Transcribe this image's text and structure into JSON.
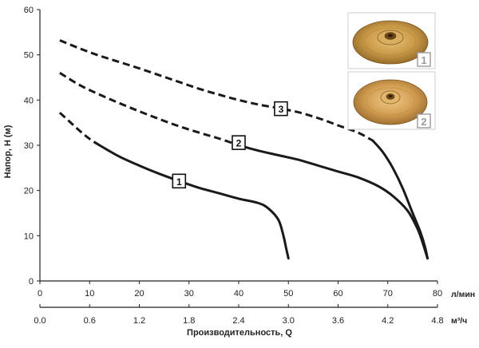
{
  "chart_data": {
    "type": "line",
    "ylabel": "Напор, Н (м)",
    "xlabel": "Производительность, Q",
    "x_unit_primary": "л/мин",
    "x_unit_secondary": "м³/ч",
    "xlim": [
      0,
      80
    ],
    "ylim": [
      0,
      60
    ],
    "x_ticks": [
      0,
      10,
      20,
      30,
      40,
      50,
      60,
      70,
      80
    ],
    "x_tick_labels": [
      "0",
      "10",
      "20",
      "30",
      "40",
      "50",
      "60",
      "70",
      "80"
    ],
    "y_ticks": [
      0,
      10,
      20,
      30,
      40,
      50,
      60
    ],
    "y_tick_labels": [
      "0",
      "10",
      "20",
      "30",
      "40",
      "50",
      "60"
    ],
    "x2_ticks": [
      0,
      10,
      20,
      30,
      40,
      50,
      60,
      70,
      80
    ],
    "x2_tick_labels": [
      "0.0",
      "0.6",
      "1.2",
      "1.8",
      "2.4",
      "3.0",
      "3.6",
      "4.2",
      "4.8"
    ],
    "grid": false,
    "series": [
      {
        "name": "1",
        "dashed_x": [
          4,
          6,
          8,
          10,
          12
        ],
        "dashed_y": [
          37.2,
          35.2,
          33.2,
          31.4,
          30
        ],
        "solid_x": [
          12,
          16,
          20,
          24,
          28,
          32,
          36,
          40,
          44,
          46,
          48,
          49,
          49.5,
          50
        ],
        "solid_y": [
          30,
          27.5,
          25.5,
          23.7,
          22.1,
          20.6,
          19.4,
          18.2,
          17.2,
          16,
          13.5,
          10,
          7.5,
          5
        ],
        "label_at": [
          28,
          22
        ]
      },
      {
        "name": "2",
        "dashed_x": [
          4,
          8,
          12,
          16,
          20,
          24,
          28,
          32,
          36,
          40
        ],
        "dashed_y": [
          46,
          43.3,
          41.2,
          39.3,
          37.5,
          35.8,
          34.2,
          32.8,
          31.5,
          30
        ],
        "solid_x": [
          40,
          44,
          48,
          52,
          56,
          60,
          64,
          68,
          71,
          74,
          76,
          77,
          78
        ],
        "solid_y": [
          30,
          28.8,
          27.8,
          26.8,
          25.5,
          24.2,
          22.9,
          21,
          18.8,
          15.5,
          11.5,
          8.5,
          5
        ],
        "label_at": [
          40,
          30.5
        ]
      },
      {
        "name": "3",
        "dashed_x": [
          4,
          8,
          12,
          16,
          20,
          24,
          28,
          32,
          36,
          40,
          44,
          48,
          52,
          56,
          60,
          64,
          67
        ],
        "dashed_y": [
          53.2,
          51.4,
          49.8,
          48.4,
          47,
          45.5,
          44,
          42.5,
          41.2,
          40,
          39,
          38.2,
          37.3,
          36,
          34.4,
          32.8,
          31
        ],
        "solid_x": [
          67,
          69,
          71,
          73,
          75,
          76.5,
          77.5,
          78
        ],
        "solid_y": [
          31,
          28.5,
          25,
          20.5,
          15,
          11,
          7.5,
          5
        ],
        "label_at": [
          48.5,
          38
        ]
      }
    ],
    "impeller_insets": [
      "1",
      "2"
    ]
  }
}
